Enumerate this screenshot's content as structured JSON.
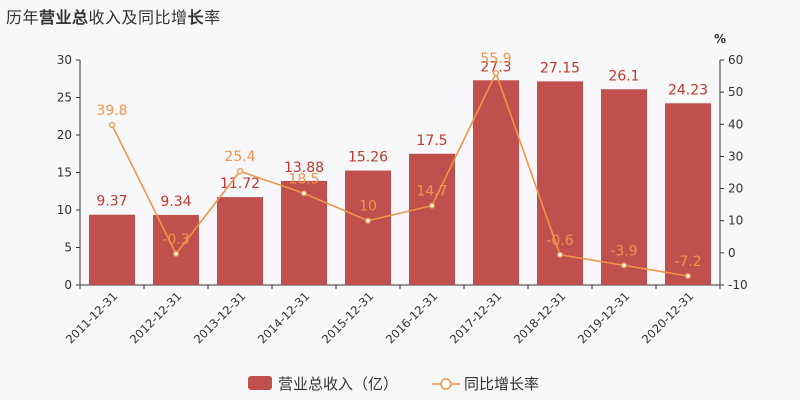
{
  "title": {
    "parts": [
      {
        "text": "历年",
        "bold": false
      },
      {
        "text": "营业总",
        "bold": true
      },
      {
        "text": "收入及同比增",
        "bold": false
      },
      {
        "text": "长",
        "bold": true
      },
      {
        "text": "率",
        "bold": false
      }
    ]
  },
  "colors": {
    "bar": "#c0504d",
    "line": "#f0954a",
    "axis": "#333333",
    "background": "#f8f7f9"
  },
  "chart_data": {
    "type": "bar",
    "categories": [
      "2011-12-31",
      "2012-12-31",
      "2013-12-31",
      "2014-12-31",
      "2015-12-31",
      "2016-12-31",
      "2017-12-31",
      "2018-12-31",
      "2019-12-31",
      "2020-12-31"
    ],
    "series": [
      {
        "name": "营业总收入（亿）",
        "type": "bar",
        "axis": "left",
        "values": [
          9.37,
          9.34,
          11.72,
          13.88,
          15.26,
          17.5,
          27.3,
          27.15,
          26.1,
          24.23
        ]
      },
      {
        "name": "同比增长率",
        "type": "line",
        "axis": "right",
        "values": [
          39.8,
          -0.3,
          25.4,
          18.5,
          10,
          14.7,
          55.9,
          -0.6,
          -3.9,
          -7.2
        ]
      }
    ],
    "y_left": {
      "min": 0,
      "max": 30,
      "ticks": [
        0,
        5,
        10,
        15,
        20,
        25,
        30
      ]
    },
    "y_right": {
      "min": -10,
      "max": 60,
      "ticks": [
        -10,
        0,
        10,
        20,
        30,
        40,
        50,
        60
      ],
      "unit": "%"
    },
    "legend": {
      "placement": "bottom-center"
    }
  }
}
